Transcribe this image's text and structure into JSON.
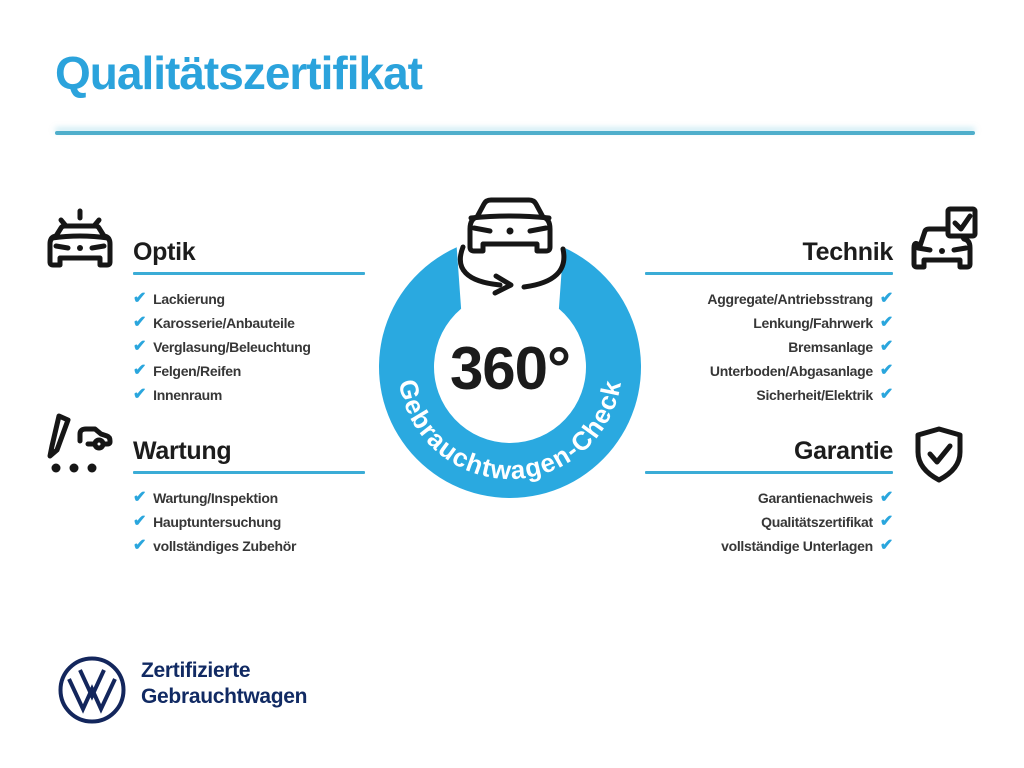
{
  "page": {
    "title": "Qualitätszertifikat"
  },
  "colors": {
    "accent_blue": "#2BA3DC",
    "ring_blue": "#2AA9E0",
    "underline_teal": "#3BACD6",
    "divider_teal": "#4FAECB",
    "check_blue": "#2AA6DD",
    "text_dark": "#1c1c1c",
    "vw_navy": "#112a63"
  },
  "glyphs": {
    "check": "✔"
  },
  "center": {
    "value": "360°",
    "ring_label": "Gebrauchtwagen-Check",
    "icon": "car-360-rotation-icon"
  },
  "sections": [
    {
      "id": "optik",
      "title": "Optik",
      "side": "left",
      "icon": "shining-car-icon",
      "items": [
        "Lackierung",
        "Karosserie/Anbauteile",
        "Verglasung/Beleuchtung",
        "Felgen/Reifen",
        "Innenraum"
      ]
    },
    {
      "id": "technik",
      "title": "Technik",
      "side": "right",
      "icon": "car-checkbox-icon",
      "items": [
        "Aggregate/Antriebsstrang",
        "Lenkung/Fahrwerk",
        "Bremsanlage",
        "Unterboden/Abgasanlage",
        "Sicherheit/Elektrik"
      ]
    },
    {
      "id": "wartung",
      "title": "Wartung",
      "side": "left",
      "icon": "service-checklist-icon",
      "items": [
        "Wartung/Inspektion",
        "Hauptuntersuchung",
        "vollständiges Zubehör"
      ]
    },
    {
      "id": "garantie",
      "title": "Garantie",
      "side": "right",
      "icon": "shield-check-icon",
      "items": [
        "Garantienachweis",
        "Qualitätszertifikat",
        "vollständige Unterlagen"
      ]
    }
  ],
  "footer": {
    "logo": "vw-logo",
    "line1": "Zertifizierte",
    "line2": "Gebrauchtwagen"
  }
}
